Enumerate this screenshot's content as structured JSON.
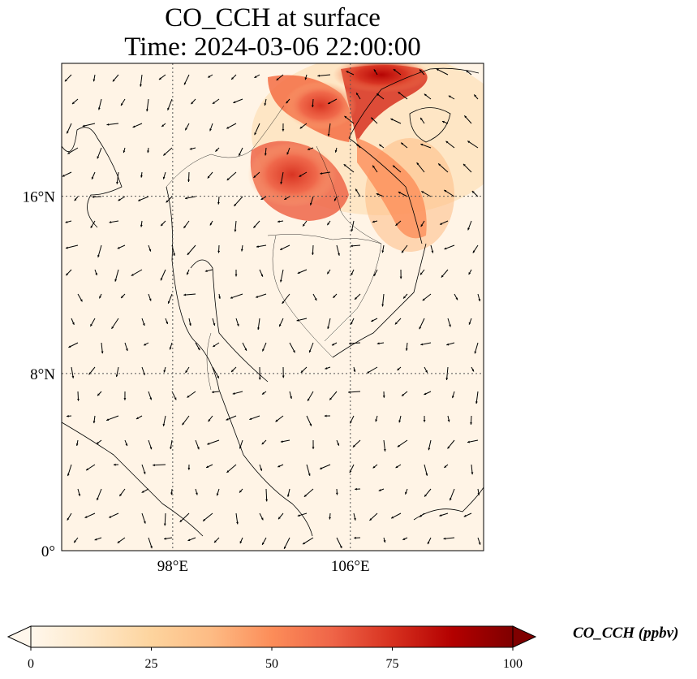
{
  "title": {
    "line1": "CO_CCH at surface",
    "line2": "Time: 2024-03-06 22:00:00"
  },
  "map": {
    "projection": "PlateCarree",
    "lon_range": [
      93,
      112
    ],
    "lat_range": [
      0,
      22
    ],
    "gridlines": "dotted",
    "lat_ticks": [
      {
        "value": 0,
        "label": "0°"
      },
      {
        "value": 8,
        "label": "8°N"
      },
      {
        "value": 16,
        "label": "16°N"
      }
    ],
    "lon_ticks": [
      {
        "value": 98,
        "label": "98°E"
      },
      {
        "value": 106,
        "label": "106°E"
      }
    ],
    "field": "CO_CCH",
    "wind_vectors": true
  },
  "colorbar": {
    "label": "CO_CCH (ppbv)",
    "colormap": "OrRd",
    "range": [
      0,
      100
    ],
    "extend": "both",
    "ticks": [
      {
        "value": 0,
        "label": "0"
      },
      {
        "value": 25,
        "label": "25"
      },
      {
        "value": 50,
        "label": "50"
      },
      {
        "value": 75,
        "label": "75"
      },
      {
        "value": 100,
        "label": "100"
      }
    ],
    "colors": [
      "#fff7ec",
      "#fee8c8",
      "#fdd49e",
      "#fdbb84",
      "#fc8d59",
      "#ef6548",
      "#d7301f",
      "#b30000",
      "#7f0000"
    ]
  }
}
